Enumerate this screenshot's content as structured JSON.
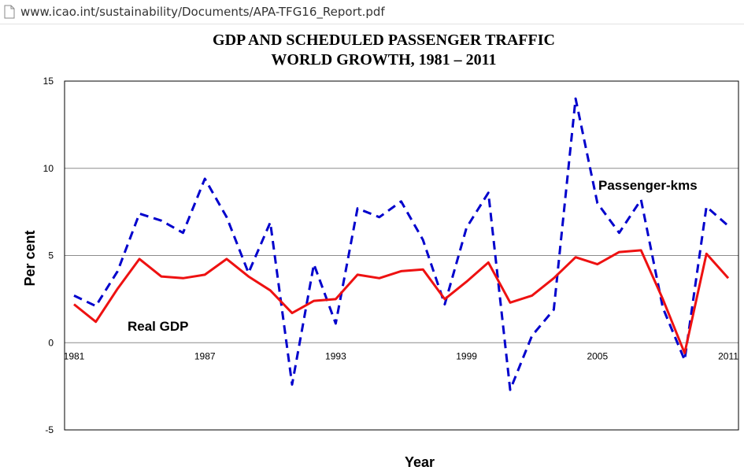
{
  "browser": {
    "url": "www.icao.int/sustainability/Documents/APA-TFG16_Report.pdf"
  },
  "chart_data": {
    "type": "line",
    "title": "GDP AND SCHEDULED PASSENGER TRAFFIC",
    "subtitle": "WORLD GROWTH, 1981 – 2011",
    "xlabel": "Year",
    "ylabel": "Per cent",
    "ylim": [
      -5,
      15
    ],
    "yticks": [
      15,
      10,
      5,
      0,
      -5
    ],
    "xticks": [
      1981,
      1987,
      1993,
      1999,
      2005,
      2011
    ],
    "grid": true,
    "x": [
      1981,
      1982,
      1983,
      1984,
      1985,
      1986,
      1987,
      1988,
      1989,
      1990,
      1991,
      1992,
      1993,
      1994,
      1995,
      1996,
      1997,
      1998,
      1999,
      2000,
      2001,
      2002,
      2003,
      2004,
      2005,
      2006,
      2007,
      2008,
      2009,
      2010,
      2011
    ],
    "series": [
      {
        "name": "Passenger-kms",
        "color": "#0000cc",
        "style": "dashed",
        "values": [
          2.7,
          2.1,
          4.1,
          7.4,
          7.0,
          6.3,
          9.4,
          7.2,
          4.0,
          6.9,
          -2.4,
          4.5,
          1.1,
          7.7,
          7.2,
          8.1,
          5.9,
          2.2,
          6.6,
          8.6,
          -2.7,
          0.4,
          1.9,
          14.0,
          8.0,
          6.3,
          8.2,
          2.0,
          -1.0,
          7.8,
          6.7
        ]
      },
      {
        "name": "Real GDP",
        "color": "#ee1111",
        "style": "solid",
        "values": [
          2.2,
          1.2,
          3.1,
          4.8,
          3.8,
          3.7,
          3.9,
          4.8,
          3.8,
          3.0,
          1.7,
          2.4,
          2.5,
          3.9,
          3.7,
          4.1,
          4.2,
          2.5,
          3.5,
          4.6,
          2.3,
          2.7,
          3.7,
          4.9,
          4.5,
          5.2,
          5.3,
          2.5,
          -0.6,
          5.1,
          3.7
        ]
      }
    ]
  }
}
